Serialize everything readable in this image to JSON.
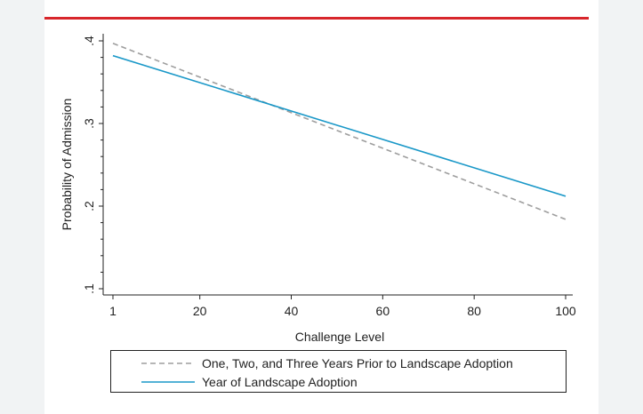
{
  "colors": {
    "accent": "#d8262b",
    "series_prior": "#9e9e9e",
    "series_adoption": "#1a98c8"
  },
  "chart_data": {
    "type": "line",
    "title": "",
    "xlabel": "Challenge Level",
    "ylabel": "Probability of Admission",
    "xlim": [
      1,
      100
    ],
    "ylim": [
      0.1,
      0.4
    ],
    "xticks": [
      1,
      20,
      40,
      60,
      80,
      100
    ],
    "yticks": [
      0.1,
      0.2,
      0.3,
      0.4
    ],
    "ytick_labels": [
      ".1",
      ".2",
      ".3",
      ".4"
    ],
    "grid": false,
    "legend_position": "bottom",
    "series": [
      {
        "name": "One, Two, and Three Years Prior to Landscape Adoption",
        "style": "dashed",
        "x": [
          1,
          100
        ],
        "y": [
          0.397,
          0.184
        ]
      },
      {
        "name": "Year of Landscape Adoption",
        "style": "solid",
        "x": [
          1,
          100
        ],
        "y": [
          0.382,
          0.212
        ]
      }
    ]
  }
}
